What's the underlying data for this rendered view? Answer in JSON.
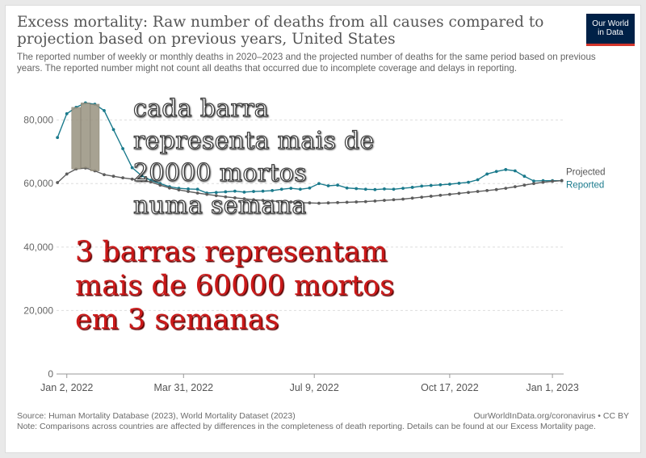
{
  "header": {
    "title": "Excess mortality: Raw number of deaths from all causes compared to projection based on previous years, United States",
    "subtitle": "The reported number of weekly or monthly deaths in 2020–2023 and the projected number of deaths for the same period based on previous years. The reported number might not count all deaths that occurred due to incomplete coverage and delays in reporting."
  },
  "logo": {
    "line1": "Our World",
    "line2": "in Data"
  },
  "footer": {
    "source": "Source: Human Mortality Database (2023), World Mortality Dataset (2023)",
    "url": "OurWorldInData.org/coronavirus • CC BY",
    "note": "Note: Comparisons across countries are affected by differences in the completeness of death reporting. Details can be found at our Excess Mortality page."
  },
  "annotations": {
    "top": "cada barra representa mais de 20000 mortos numa semana",
    "bottom": "3 barras representam mais de 60000 mortos em 3 semanas"
  },
  "colors": {
    "reported": "#1a7a8c",
    "projected": "#5c5c5c",
    "annotation_red": "#cc1a1a",
    "bars": "#9c9684",
    "logo_bg": "#002147",
    "logo_accent": "#d3352b"
  },
  "chart_data": {
    "type": "line",
    "title": "Excess mortality: Raw number of deaths from all causes compared to projection based on previous years, United States",
    "x_ticks": [
      {
        "week": 0,
        "label": "Jan 2, 2022"
      },
      {
        "week": 12.5,
        "label": "Mar 31, 2022"
      },
      {
        "week": 26.5,
        "label": "Jul 9, 2022"
      },
      {
        "week": 41,
        "label": "Oct 17, 2022"
      },
      {
        "week": 52,
        "label": "Jan 1, 2023"
      }
    ],
    "y_ticks": [
      0,
      20000,
      40000,
      60000,
      80000
    ],
    "ylim": [
      0,
      85000
    ],
    "xlim": [
      -1.1,
      53.2
    ],
    "grid": "horizontal",
    "series": [
      {
        "name": "Reported",
        "label": "Reported",
        "color": "#1a7a8c",
        "x": [
          -1,
          0,
          1,
          2,
          3,
          4,
          5,
          6,
          7,
          8,
          9,
          10,
          11,
          12,
          13,
          14,
          15,
          16,
          17,
          18,
          19,
          20,
          21,
          22,
          23,
          24,
          25,
          26,
          27,
          28,
          29,
          30,
          31,
          32,
          33,
          34,
          35,
          36,
          37,
          38,
          39,
          40,
          41,
          42,
          43,
          44,
          45,
          46,
          47,
          48,
          49,
          50,
          51,
          52,
          53
        ],
        "values": [
          74500,
          82000,
          84000,
          85400,
          85000,
          83000,
          77000,
          71000,
          65000,
          62500,
          61000,
          60000,
          59000,
          58500,
          58300,
          58200,
          57000,
          57200,
          57400,
          57600,
          57300,
          57500,
          57600,
          57800,
          58200,
          58500,
          58200,
          58600,
          60000,
          59300,
          59500,
          58600,
          58400,
          58200,
          58100,
          58300,
          58200,
          58500,
          58800,
          59200,
          59400,
          59600,
          59800,
          60100,
          60400,
          61200,
          63000,
          63800,
          64400,
          64000,
          62300,
          60800,
          60900,
          60900,
          60900
        ]
      },
      {
        "name": "Projected",
        "label": "Projected",
        "color": "#5c5c5c",
        "x": [
          -1,
          0,
          1,
          2,
          3,
          4,
          5,
          6,
          7,
          8,
          9,
          10,
          11,
          12,
          13,
          14,
          15,
          16,
          17,
          18,
          19,
          20,
          21,
          22,
          23,
          24,
          25,
          26,
          27,
          28,
          29,
          30,
          31,
          32,
          33,
          34,
          35,
          36,
          37,
          38,
          39,
          40,
          41,
          42,
          43,
          44,
          45,
          46,
          47,
          48,
          49,
          50,
          51,
          52,
          53
        ],
        "values": [
          60300,
          63000,
          64600,
          64900,
          64000,
          62800,
          62300,
          61800,
          61400,
          61000,
          60500,
          59500,
          58600,
          58000,
          57500,
          57000,
          56600,
          56200,
          55800,
          55500,
          55200,
          54900,
          54700,
          54500,
          54300,
          54200,
          54000,
          53900,
          53800,
          53900,
          54000,
          54100,
          54200,
          54300,
          54500,
          54700,
          54900,
          55100,
          55400,
          55700,
          56000,
          56300,
          56600,
          56900,
          57200,
          57500,
          57800,
          58100,
          58500,
          59000,
          59500,
          60000,
          60400,
          60700,
          60900
        ]
      }
    ],
    "highlight_weeks": [
      1,
      2,
      3
    ]
  }
}
